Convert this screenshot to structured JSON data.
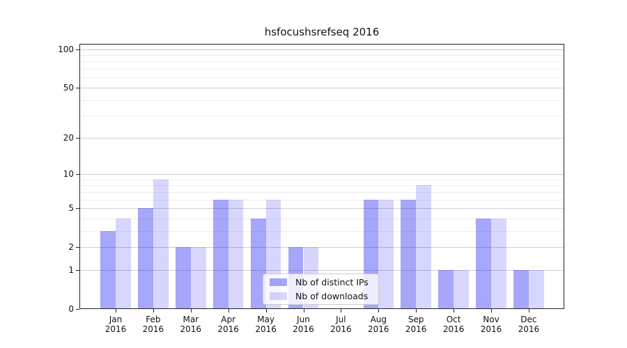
{
  "chart_data": {
    "type": "bar",
    "title": "hsfocushsrefseq 2016",
    "categories": [
      "Jan 2016",
      "Feb 2016",
      "Mar 2016",
      "Apr 2016",
      "May 2016",
      "Jun 2016",
      "Jul 2016",
      "Aug 2016",
      "Sep 2016",
      "Oct 2016",
      "Nov 2016",
      "Dec 2016"
    ],
    "series": [
      {
        "name": "Nb of distinct IPs",
        "color": "rgba(8,8,240,0.36)",
        "values": [
          3,
          5,
          2,
          6,
          4,
          2,
          0,
          6,
          6,
          1,
          4,
          1
        ]
      },
      {
        "name": "Nb of downloads",
        "color": "rgba(8,8,240,0.16)",
        "values": [
          4,
          9,
          2,
          6,
          6,
          2,
          0,
          6,
          8,
          1,
          4,
          1
        ]
      }
    ],
    "y_scale": "log1p",
    "ylim": [
      0,
      110
    ],
    "y_axis_ticks": [
      100,
      50,
      20,
      10,
      5,
      2,
      1,
      0
    ],
    "y_major_gridlines": [
      1,
      2,
      5,
      10,
      20,
      50,
      100
    ],
    "y_minor_gridlines": [
      3,
      4,
      6,
      7,
      8,
      9,
      30,
      40,
      60,
      70,
      80,
      90
    ],
    "grid": true,
    "legend_position": "lower center"
  },
  "colors": {
    "grid_major": "#cfcfcf",
    "grid_minor": "#ededed",
    "axis": "#222222",
    "legend_border": "#cccccc"
  }
}
